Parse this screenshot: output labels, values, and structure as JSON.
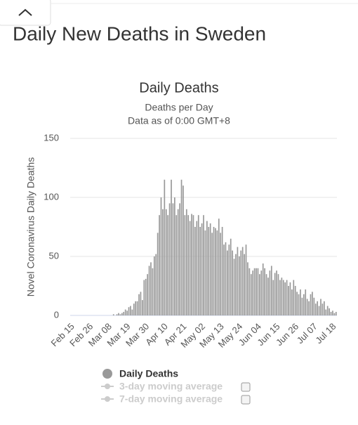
{
  "page": {
    "title": "Daily New Deaths in Sweden"
  },
  "chart_data": {
    "type": "bar",
    "title": "Daily Deaths",
    "subtitle": [
      "Deaths per Day",
      "Data as of 0:00 GMT+8"
    ],
    "y_label": "Novel Coronavirus Daily Deaths",
    "categories": [
      "Feb 15",
      null,
      null,
      null,
      null,
      null,
      null,
      null,
      null,
      null,
      null,
      "Feb 26",
      null,
      null,
      null,
      null,
      null,
      null,
      null,
      null,
      null,
      null,
      "Mar 08",
      null,
      null,
      null,
      null,
      null,
      null,
      null,
      null,
      null,
      null,
      "Mar 19",
      null,
      null,
      null,
      null,
      null,
      null,
      null,
      null,
      null,
      null,
      "Mar 30",
      null,
      null,
      null,
      null,
      null,
      null,
      null,
      null,
      null,
      null,
      "Apr 10",
      null,
      null,
      null,
      null,
      null,
      null,
      null,
      null,
      null,
      null,
      "Apr 21",
      null,
      null,
      null,
      null,
      null,
      null,
      null,
      null,
      null,
      null,
      "May 02",
      null,
      null,
      null,
      null,
      null,
      null,
      null,
      null,
      null,
      null,
      "May 13",
      null,
      null,
      null,
      null,
      null,
      null,
      null,
      null,
      null,
      null,
      "May 24",
      null,
      null,
      null,
      null,
      null,
      null,
      null,
      null,
      null,
      null,
      "Jun 04",
      null,
      null,
      null,
      null,
      null,
      null,
      null,
      null,
      null,
      null,
      "Jun 15",
      null,
      null,
      null,
      null,
      null,
      null,
      null,
      null,
      null,
      null,
      "Jun 26",
      null,
      null,
      null,
      null,
      null,
      null,
      null,
      null,
      null,
      null,
      "Jul 07",
      null,
      null,
      null,
      null,
      null,
      null,
      null,
      null,
      null,
      null,
      "Jul 18",
      null,
      null
    ],
    "series": [
      {
        "name": "Daily Deaths",
        "color": "#999999",
        "values": [
          0,
          0,
          0,
          0,
          0,
          0,
          0,
          0,
          0,
          0,
          0,
          0,
          0,
          0,
          0,
          0,
          0,
          0,
          0,
          0,
          0,
          0,
          0,
          0,
          0,
          1,
          0,
          1,
          2,
          1,
          2,
          3,
          5,
          4,
          7,
          8,
          5,
          10,
          12,
          12,
          18,
          20,
          13,
          30,
          31,
          35,
          42,
          45,
          40,
          50,
          52,
          70,
          85,
          100,
          90,
          115,
          90,
          85,
          95,
          115,
          95,
          100,
          85,
          90,
          95,
          115,
          110,
          85,
          90,
          85,
          80,
          86,
          85,
          75,
          80,
          85,
          75,
          78,
          85,
          72,
          80,
          75,
          78,
          70,
          75,
          74,
          72,
          82,
          70,
          75,
          60,
          62,
          55,
          60,
          65,
          55,
          48,
          52,
          58,
          50,
          55,
          58,
          52,
          60,
          45,
          40,
          35,
          38,
          40,
          40,
          40,
          35,
          38,
          44,
          40,
          35,
          32,
          38,
          42,
          30,
          36,
          38,
          35,
          30,
          32,
          30,
          28,
          30,
          25,
          28,
          22,
          30,
          25,
          20,
          18,
          22,
          15,
          18,
          22,
          14,
          12,
          18,
          20,
          15,
          10,
          12,
          8,
          14,
          10,
          12,
          5,
          8,
          6,
          3,
          4,
          2,
          3
        ]
      }
    ],
    "hidden_series": [
      {
        "name": "3-day moving average",
        "color": "#cccccc"
      },
      {
        "name": "7-day moving average",
        "color": "#cccccc"
      }
    ],
    "ylim": [
      0,
      150
    ],
    "yticks": [
      0,
      50,
      100,
      150
    ],
    "grid": true
  }
}
